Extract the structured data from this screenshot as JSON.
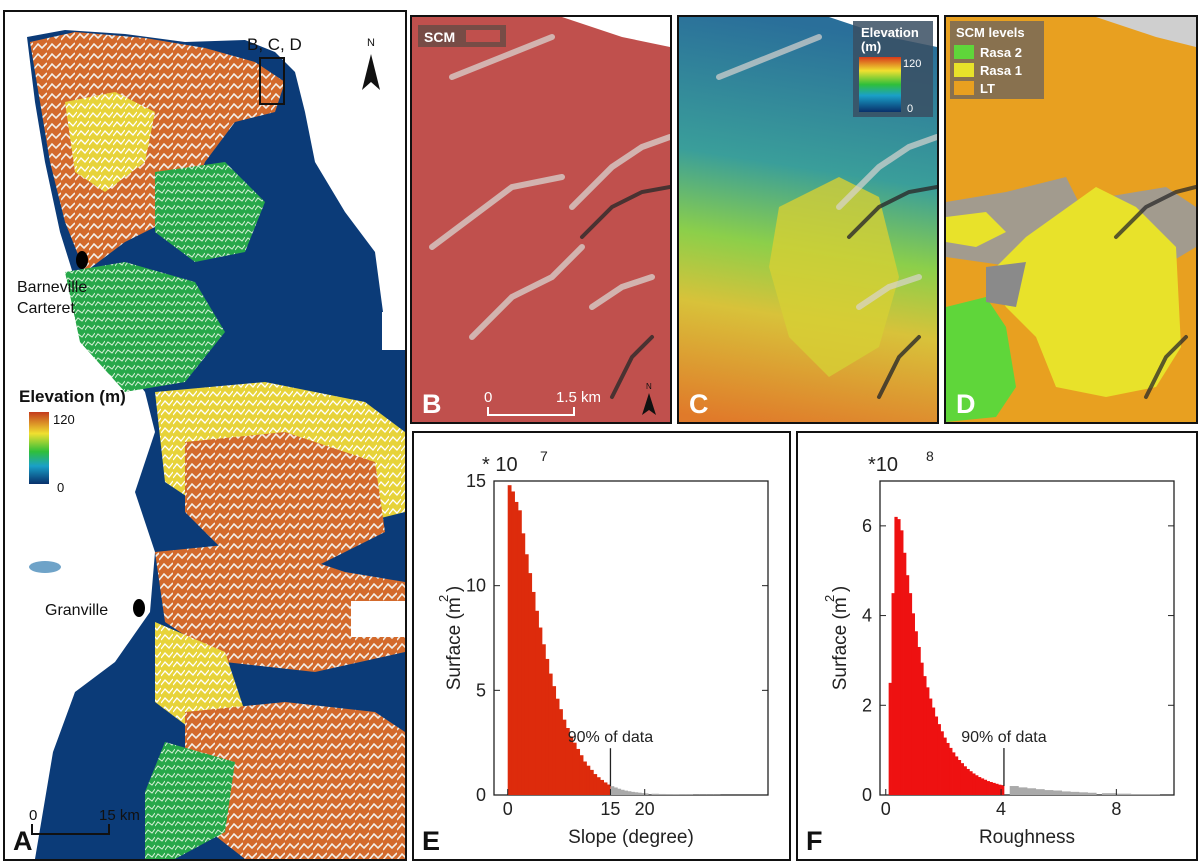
{
  "panel_a": {
    "letter": "A",
    "inset_label": "B, C, D",
    "north": "N",
    "towns": [
      "Barneville",
      "Carteret",
      "Granville"
    ],
    "legend_title": "Elevation (m)",
    "legend_max": "120",
    "legend_min": "0",
    "scale_zero": "0",
    "scale_dist": "15 km"
  },
  "panel_b": {
    "letter": "B",
    "legend_label": "SCM",
    "scale_zero": "0",
    "scale_dist": "1.5 km",
    "north": "N"
  },
  "panel_c": {
    "letter": "C",
    "legend_title_1": "Elevation",
    "legend_title_2": "(m)",
    "legend_max": "120",
    "legend_min": "0"
  },
  "panel_d": {
    "letter": "D",
    "legend_title": "SCM levels",
    "levels": [
      {
        "label": "Rasa 2",
        "color": "#5fd63a"
      },
      {
        "label": "Rasa 1",
        "color": "#e8e22a"
      },
      {
        "label": "LT",
        "color": "#e8a020"
      }
    ]
  },
  "colors": {
    "scm_red": "#c0504d",
    "histogram_e": "#dd2b0c",
    "histogram_f": "#ee1111",
    "tail_gray": "#aaaaaa",
    "sea_blue": "#0b3b78"
  },
  "chart_data": [
    {
      "type": "bar",
      "panel": "E",
      "multiplier": "* 10",
      "multiplier_exp": "7",
      "ylabel": "Surface (m )",
      "ylabel_exp": "2",
      "xlabel": "Slope (degree)",
      "annotation": "90% of data",
      "threshold": 15,
      "xlim": [
        -2,
        38
      ],
      "ylim": [
        0,
        15
      ],
      "xticks": [
        "0",
        "15",
        "20"
      ],
      "xtick_values": [
        0,
        15,
        20
      ],
      "yticks": [
        "0",
        "5",
        "10",
        "15"
      ],
      "ytick_values": [
        0,
        5,
        10,
        15
      ],
      "x": [
        0,
        0.5,
        1,
        1.5,
        2,
        2.5,
        3,
        3.5,
        4,
        4.5,
        5,
        5.5,
        6,
        6.5,
        7,
        7.5,
        8,
        8.5,
        9,
        9.5,
        10,
        10.5,
        11,
        11.5,
        12,
        12.5,
        13,
        13.5,
        14,
        14.5,
        15,
        15.5,
        16,
        16.5,
        17,
        17.5,
        18,
        18.5,
        19,
        19.5,
        20,
        21,
        22,
        23,
        24,
        25,
        26,
        27,
        28,
        29,
        30
      ],
      "values": [
        14.8,
        14.5,
        14.0,
        13.6,
        12.5,
        11.5,
        10.6,
        9.7,
        8.8,
        8.0,
        7.2,
        6.5,
        5.8,
        5.2,
        4.6,
        4.1,
        3.6,
        3.2,
        2.8,
        2.5,
        2.2,
        1.9,
        1.6,
        1.4,
        1.2,
        1.0,
        0.85,
        0.72,
        0.6,
        0.5,
        0.42,
        0.36,
        0.3,
        0.25,
        0.21,
        0.18,
        0.15,
        0.13,
        0.11,
        0.09,
        0.08,
        0.06,
        0.05,
        0.04,
        0.03,
        0.02,
        0.02,
        0.01,
        0.01,
        0.01,
        0.01
      ]
    },
    {
      "type": "bar",
      "panel": "F",
      "multiplier": "*10",
      "multiplier_exp": "8",
      "ylabel": "Surface (m )",
      "ylabel_exp": "2",
      "xlabel": "Roughness",
      "annotation": "90% of data",
      "threshold": 4.1,
      "xlim": [
        -0.2,
        10
      ],
      "ylim": [
        0,
        7
      ],
      "xticks": [
        "0",
        "4",
        "8"
      ],
      "xtick_values": [
        0,
        4,
        8
      ],
      "yticks": [
        "0",
        "2",
        "4",
        "6"
      ],
      "ytick_values": [
        0,
        2,
        4,
        6
      ],
      "x": [
        0.1,
        0.2,
        0.3,
        0.4,
        0.5,
        0.6,
        0.7,
        0.8,
        0.9,
        1.0,
        1.1,
        1.2,
        1.3,
        1.4,
        1.5,
        1.6,
        1.7,
        1.8,
        1.9,
        2.0,
        2.1,
        2.2,
        2.3,
        2.4,
        2.5,
        2.6,
        2.7,
        2.8,
        2.9,
        3.0,
        3.1,
        3.2,
        3.3,
        3.4,
        3.5,
        3.6,
        3.7,
        3.8,
        3.9,
        4.0,
        4.3,
        4.6,
        4.9,
        5.2,
        5.5,
        5.8,
        6.1,
        6.4,
        6.7,
        7.0,
        7.5,
        8.0,
        8.5,
        9.0
      ],
      "values": [
        2.5,
        4.5,
        6.2,
        6.15,
        5.9,
        5.4,
        4.9,
        4.5,
        4.05,
        3.65,
        3.3,
        2.95,
        2.65,
        2.4,
        2.15,
        1.95,
        1.75,
        1.58,
        1.42,
        1.28,
        1.16,
        1.05,
        0.95,
        0.86,
        0.78,
        0.71,
        0.64,
        0.58,
        0.53,
        0.48,
        0.44,
        0.4,
        0.37,
        0.34,
        0.31,
        0.29,
        0.27,
        0.25,
        0.23,
        0.22,
        0.2,
        0.17,
        0.15,
        0.13,
        0.11,
        0.1,
        0.08,
        0.07,
        0.06,
        0.05,
        0.04,
        0.03,
        0.02,
        0.01
      ]
    }
  ]
}
